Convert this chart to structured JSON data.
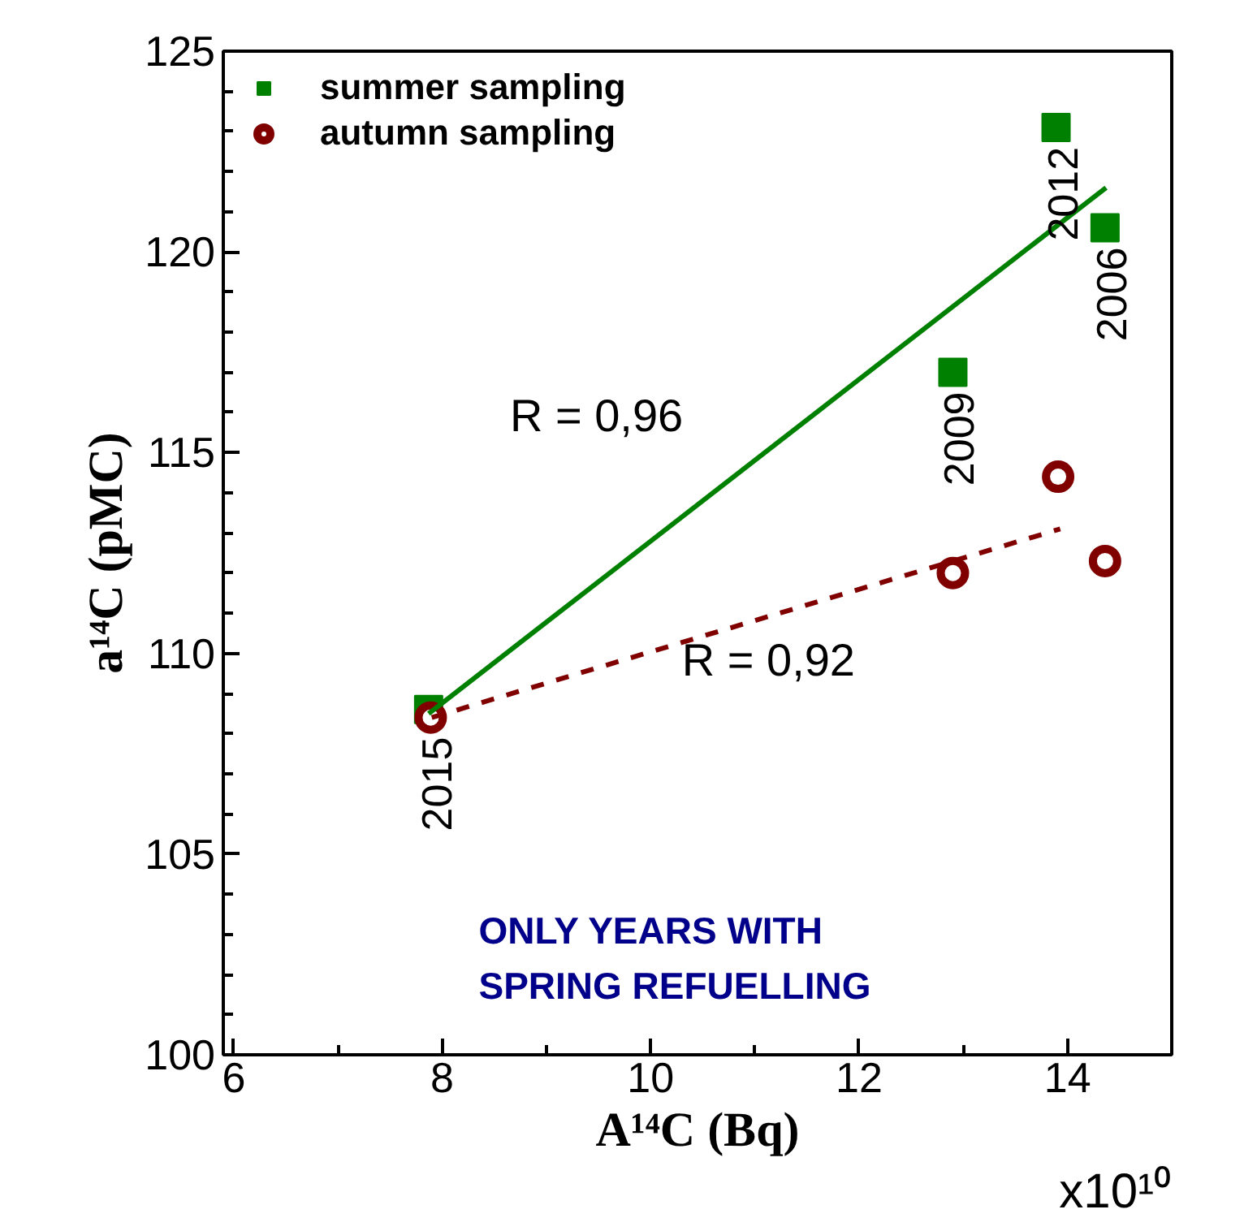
{
  "chart_data": {
    "type": "scatter",
    "xlabel": "A¹⁴C (Bq)",
    "ylabel": "a¹⁴C (pMC)",
    "series": [
      {
        "name": "summer sampling",
        "marker": "square",
        "color": "#008000",
        "x": [
          7.87,
          12.9,
          13.89,
          14.36
        ],
        "values": [
          108.6,
          117.0,
          123.1,
          120.6
        ]
      },
      {
        "name": "autumn sampling",
        "marker": "circle",
        "color": "#800000",
        "x": [
          7.89,
          12.9,
          13.91,
          14.36
        ],
        "values": [
          108.4,
          112.0,
          114.4,
          112.3
        ]
      },
      {
        "type": "line",
        "line_style": "solid",
        "color": "#008000",
        "x": [
          7.87,
          14.37
        ],
        "values": [
          108.5,
          121.6
        ]
      },
      {
        "type": "line",
        "line_style": "dashed",
        "color": "#800000",
        "x": [
          7.9,
          13.93
        ],
        "values": [
          108.4,
          113.1
        ]
      }
    ],
    "xlim": [
      5.9,
      15
    ],
    "xticks": [
      6,
      8,
      10,
      12,
      14
    ],
    "ylim": [
      100,
      125
    ],
    "yticks": [
      100,
      105,
      110,
      115,
      120,
      125
    ],
    "grid": false,
    "legend": "top left",
    "annotations": [
      "R = 0,96",
      "R = 0,92",
      "ONLY YEARS WITH\nSPRING REFUELLING",
      "x10¹⁰",
      {
        "text": "2015",
        "x": 7.89,
        "y": 108.4
      },
      {
        "text": "2009",
        "x": 12.9,
        "y": 117.0
      },
      {
        "text": "2012",
        "x": 13.89,
        "y": 123.1
      },
      {
        "text": "2006",
        "x": 14.36,
        "y": 120.6
      }
    ]
  }
}
